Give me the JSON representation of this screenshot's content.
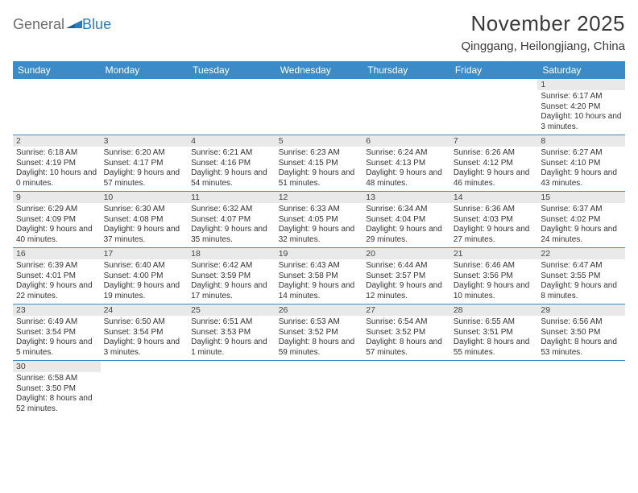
{
  "logo": {
    "general": "General",
    "blue": "Blue"
  },
  "title": "November 2025",
  "location": "Qinggang, Heilongjiang, China",
  "header_bg": "#3b8bc9",
  "header_fg": "#ffffff",
  "daynum_bg": "#e9e9e9",
  "row_border": "#3b8bc9",
  "text_color": "#333333",
  "weekdays": [
    "Sunday",
    "Monday",
    "Tuesday",
    "Wednesday",
    "Thursday",
    "Friday",
    "Saturday"
  ],
  "weeks": [
    [
      null,
      null,
      null,
      null,
      null,
      null,
      {
        "n": "1",
        "sr": "Sunrise: 6:17 AM",
        "ss": "Sunset: 4:20 PM",
        "dl": "Daylight: 10 hours and 3 minutes."
      }
    ],
    [
      {
        "n": "2",
        "sr": "Sunrise: 6:18 AM",
        "ss": "Sunset: 4:19 PM",
        "dl": "Daylight: 10 hours and 0 minutes."
      },
      {
        "n": "3",
        "sr": "Sunrise: 6:20 AM",
        "ss": "Sunset: 4:17 PM",
        "dl": "Daylight: 9 hours and 57 minutes."
      },
      {
        "n": "4",
        "sr": "Sunrise: 6:21 AM",
        "ss": "Sunset: 4:16 PM",
        "dl": "Daylight: 9 hours and 54 minutes."
      },
      {
        "n": "5",
        "sr": "Sunrise: 6:23 AM",
        "ss": "Sunset: 4:15 PM",
        "dl": "Daylight: 9 hours and 51 minutes."
      },
      {
        "n": "6",
        "sr": "Sunrise: 6:24 AM",
        "ss": "Sunset: 4:13 PM",
        "dl": "Daylight: 9 hours and 48 minutes."
      },
      {
        "n": "7",
        "sr": "Sunrise: 6:26 AM",
        "ss": "Sunset: 4:12 PM",
        "dl": "Daylight: 9 hours and 46 minutes."
      },
      {
        "n": "8",
        "sr": "Sunrise: 6:27 AM",
        "ss": "Sunset: 4:10 PM",
        "dl": "Daylight: 9 hours and 43 minutes."
      }
    ],
    [
      {
        "n": "9",
        "sr": "Sunrise: 6:29 AM",
        "ss": "Sunset: 4:09 PM",
        "dl": "Daylight: 9 hours and 40 minutes."
      },
      {
        "n": "10",
        "sr": "Sunrise: 6:30 AM",
        "ss": "Sunset: 4:08 PM",
        "dl": "Daylight: 9 hours and 37 minutes."
      },
      {
        "n": "11",
        "sr": "Sunrise: 6:32 AM",
        "ss": "Sunset: 4:07 PM",
        "dl": "Daylight: 9 hours and 35 minutes."
      },
      {
        "n": "12",
        "sr": "Sunrise: 6:33 AM",
        "ss": "Sunset: 4:05 PM",
        "dl": "Daylight: 9 hours and 32 minutes."
      },
      {
        "n": "13",
        "sr": "Sunrise: 6:34 AM",
        "ss": "Sunset: 4:04 PM",
        "dl": "Daylight: 9 hours and 29 minutes."
      },
      {
        "n": "14",
        "sr": "Sunrise: 6:36 AM",
        "ss": "Sunset: 4:03 PM",
        "dl": "Daylight: 9 hours and 27 minutes."
      },
      {
        "n": "15",
        "sr": "Sunrise: 6:37 AM",
        "ss": "Sunset: 4:02 PM",
        "dl": "Daylight: 9 hours and 24 minutes."
      }
    ],
    [
      {
        "n": "16",
        "sr": "Sunrise: 6:39 AM",
        "ss": "Sunset: 4:01 PM",
        "dl": "Daylight: 9 hours and 22 minutes."
      },
      {
        "n": "17",
        "sr": "Sunrise: 6:40 AM",
        "ss": "Sunset: 4:00 PM",
        "dl": "Daylight: 9 hours and 19 minutes."
      },
      {
        "n": "18",
        "sr": "Sunrise: 6:42 AM",
        "ss": "Sunset: 3:59 PM",
        "dl": "Daylight: 9 hours and 17 minutes."
      },
      {
        "n": "19",
        "sr": "Sunrise: 6:43 AM",
        "ss": "Sunset: 3:58 PM",
        "dl": "Daylight: 9 hours and 14 minutes."
      },
      {
        "n": "20",
        "sr": "Sunrise: 6:44 AM",
        "ss": "Sunset: 3:57 PM",
        "dl": "Daylight: 9 hours and 12 minutes."
      },
      {
        "n": "21",
        "sr": "Sunrise: 6:46 AM",
        "ss": "Sunset: 3:56 PM",
        "dl": "Daylight: 9 hours and 10 minutes."
      },
      {
        "n": "22",
        "sr": "Sunrise: 6:47 AM",
        "ss": "Sunset: 3:55 PM",
        "dl": "Daylight: 9 hours and 8 minutes."
      }
    ],
    [
      {
        "n": "23",
        "sr": "Sunrise: 6:49 AM",
        "ss": "Sunset: 3:54 PM",
        "dl": "Daylight: 9 hours and 5 minutes."
      },
      {
        "n": "24",
        "sr": "Sunrise: 6:50 AM",
        "ss": "Sunset: 3:54 PM",
        "dl": "Daylight: 9 hours and 3 minutes."
      },
      {
        "n": "25",
        "sr": "Sunrise: 6:51 AM",
        "ss": "Sunset: 3:53 PM",
        "dl": "Daylight: 9 hours and 1 minute."
      },
      {
        "n": "26",
        "sr": "Sunrise: 6:53 AM",
        "ss": "Sunset: 3:52 PM",
        "dl": "Daylight: 8 hours and 59 minutes."
      },
      {
        "n": "27",
        "sr": "Sunrise: 6:54 AM",
        "ss": "Sunset: 3:52 PM",
        "dl": "Daylight: 8 hours and 57 minutes."
      },
      {
        "n": "28",
        "sr": "Sunrise: 6:55 AM",
        "ss": "Sunset: 3:51 PM",
        "dl": "Daylight: 8 hours and 55 minutes."
      },
      {
        "n": "29",
        "sr": "Sunrise: 6:56 AM",
        "ss": "Sunset: 3:50 PM",
        "dl": "Daylight: 8 hours and 53 minutes."
      }
    ],
    [
      {
        "n": "30",
        "sr": "Sunrise: 6:58 AM",
        "ss": "Sunset: 3:50 PM",
        "dl": "Daylight: 8 hours and 52 minutes."
      },
      null,
      null,
      null,
      null,
      null,
      null
    ]
  ]
}
